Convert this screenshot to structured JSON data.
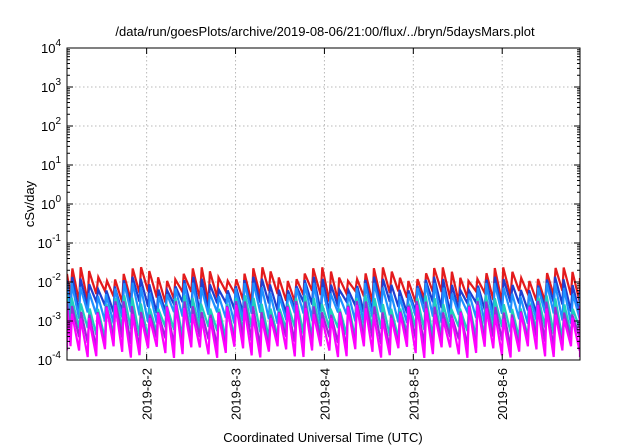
{
  "chart_data": {
    "type": "line",
    "title": "/data/run/goesPlots/archive/2019-08-06/21:00/flux/../bryn/5daysMars.plot",
    "xlabel": "Coordinated Universal Time (UTC)",
    "ylabel": "cSv/day",
    "yscale": "log",
    "ylim": [
      0.0001,
      10000
    ],
    "xlim": [
      "2019-08-01T02:30",
      "2019-08-06T21:00"
    ],
    "grid": true,
    "y_ticks": [
      {
        "base": "10",
        "exp": "-4"
      },
      {
        "base": "10",
        "exp": "-3"
      },
      {
        "base": "10",
        "exp": "-2"
      },
      {
        "base": "10",
        "exp": "-1"
      },
      {
        "base": "10",
        "exp": "0"
      },
      {
        "base": "10",
        "exp": "1"
      },
      {
        "base": "10",
        "exp": "2"
      },
      {
        "base": "10",
        "exp": "3"
      },
      {
        "base": "10",
        "exp": "4"
      }
    ],
    "x_ticks": [
      {
        "label": "2019-8-2",
        "date": "2019-08-02T00:00"
      },
      {
        "label": "2019-8-3",
        "date": "2019-08-03T00:00"
      },
      {
        "label": "2019-8-4",
        "date": "2019-08-04T00:00"
      },
      {
        "label": "2019-8-5",
        "date": "2019-08-05T00:00"
      },
      {
        "label": "2019-8-6",
        "date": "2019-08-06T00:00"
      }
    ],
    "series": [
      {
        "color": "#e41a1c",
        "peak": 0.016,
        "trough": 0.0042,
        "period_hours": 2.33
      },
      {
        "color": "#1f3fd0",
        "peak": 0.009,
        "trough": 0.0022,
        "period_hours": 2.33
      },
      {
        "color": "#1e90ff",
        "peak": 0.0065,
        "trough": 0.0012,
        "period_hours": 2.33
      },
      {
        "color": "#1fcfbf",
        "peak": 0.003,
        "trough": 0.0005,
        "period_hours": 2.33
      },
      {
        "color": "#9a2bd6",
        "peak": 0.0022,
        "trough": 0.00028,
        "period_hours": 2.33
      },
      {
        "color": "#ff00ff",
        "peak": 0.0017,
        "trough": 0.00016,
        "period_hours": 2.33
      }
    ]
  }
}
